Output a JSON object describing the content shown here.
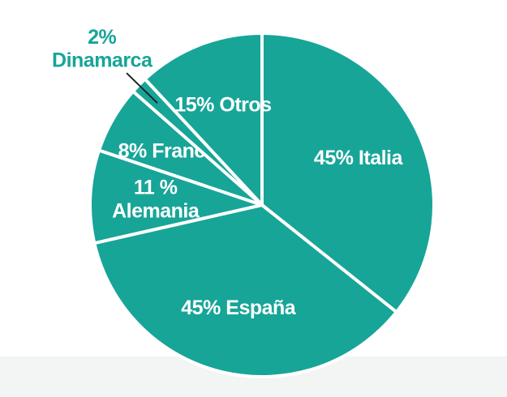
{
  "chart_data": {
    "type": "pie",
    "categories": [
      "Italia",
      "España",
      "Alemania",
      "Francia",
      "Dinamarca",
      "Otros"
    ],
    "values": [
      45,
      45,
      11,
      8,
      2,
      15
    ],
    "value_labels": [
      "45%",
      "45%",
      "11 %",
      "8%",
      "2%",
      "15%"
    ],
    "color": "#17a598"
  }
}
